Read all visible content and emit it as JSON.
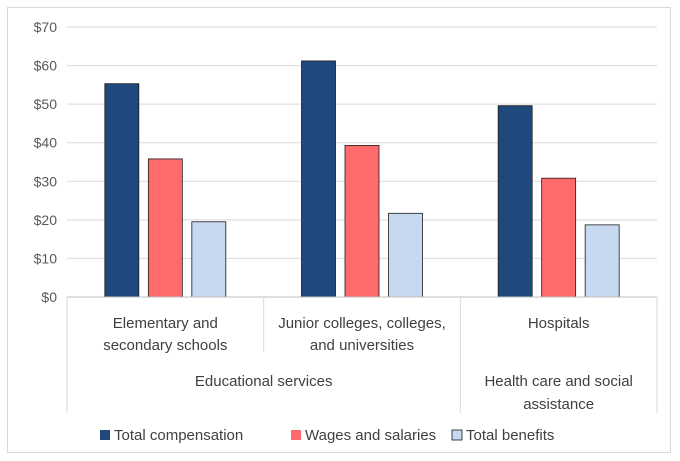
{
  "chart_data": {
    "type": "bar",
    "title": "",
    "xlabel": "",
    "ylabel": "",
    "ylim": [
      0,
      70
    ],
    "yticks": [
      "$0",
      "$10",
      "$20",
      "$30",
      "$40",
      "$50",
      "$60",
      "$70"
    ],
    "yticks_values": [
      0,
      10,
      20,
      30,
      40,
      50,
      60,
      70
    ],
    "categories": [
      [
        "Elementary and",
        "secondary schools"
      ],
      [
        "Junior colleges, colleges,",
        "and universities"
      ],
      [
        "Hospitals"
      ]
    ],
    "groups": [
      {
        "label": [
          "Educational services"
        ],
        "span": [
          0,
          1
        ]
      },
      {
        "label": [
          "Health care and social",
          "assistance"
        ],
        "span": [
          2,
          2
        ]
      }
    ],
    "series": [
      {
        "name": "Total compensation",
        "color": "#1f497d",
        "values": [
          55.3,
          61.2,
          49.6
        ]
      },
      {
        "name": "Wages and salaries",
        "color": "#ff6b6b",
        "values": [
          35.8,
          39.3,
          30.8
        ]
      },
      {
        "name": "Total benefits",
        "color": "#c6d9f1",
        "values": [
          19.5,
          21.7,
          18.7
        ]
      }
    ],
    "grid": true,
    "legend": "bottom"
  }
}
